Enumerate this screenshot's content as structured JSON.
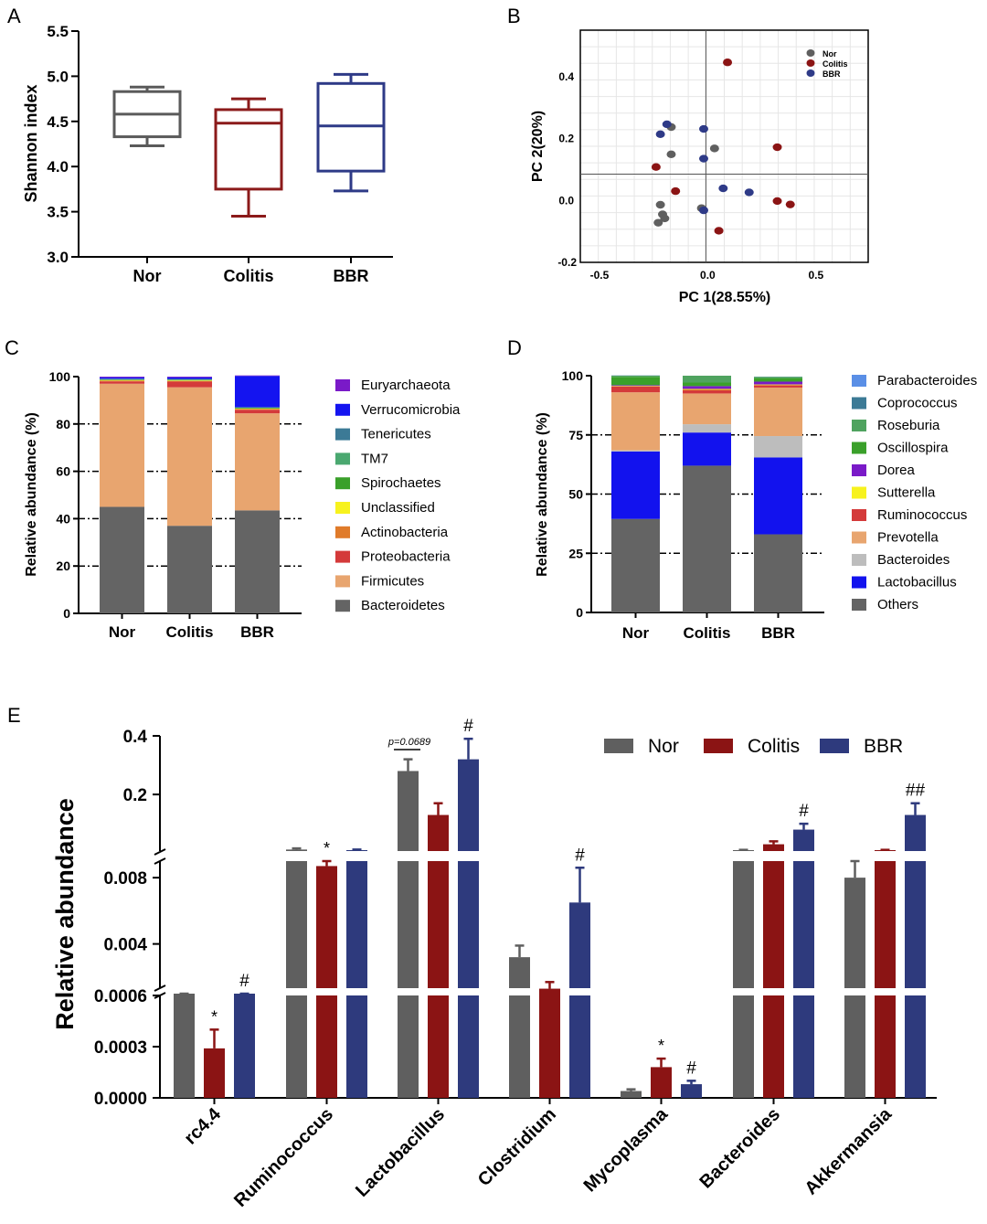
{
  "chart_data": [
    {
      "panel": "A",
      "type": "boxplot",
      "ylabel": "Shannon index",
      "ylim": [
        3.0,
        5.5
      ],
      "yticks": [
        "3.0",
        "3.5",
        "4.0",
        "4.5",
        "5.0",
        "5.5"
      ],
      "categories": [
        "Nor",
        "Colitis",
        "BBR"
      ],
      "colors": [
        "#5a5a5a",
        "#8b1a1a",
        "#2e3a87"
      ],
      "boxes": [
        {
          "min": 4.23,
          "q1": 4.33,
          "median": 4.58,
          "q3": 4.83,
          "max": 4.88
        },
        {
          "min": 3.45,
          "q1": 3.75,
          "median": 4.48,
          "q3": 4.63,
          "max": 4.75
        },
        {
          "min": 3.73,
          "q1": 3.95,
          "median": 4.45,
          "q3": 4.92,
          "max": 5.02
        }
      ]
    },
    {
      "panel": "B",
      "type": "scatter",
      "xlabel": "PC 1(28.55%)",
      "ylabel": "PC 2(20%)",
      "xticks": [
        "-0.5",
        "0.0",
        "0.5"
      ],
      "yticks": [
        "0.4",
        "0.2",
        "0.0",
        "-0.2"
      ],
      "xlim": [
        -0.58,
        0.75
      ],
      "ylim": [
        -0.2,
        0.55
      ],
      "origin_y": 0.085,
      "legend": [
        "Nor",
        "Colitis",
        "BBR"
      ],
      "colors": [
        "#5f5f5f",
        "#8b1414",
        "#2e3a87"
      ],
      "series": [
        {
          "name": "Nor",
          "points": [
            [
              -0.16,
              0.237
            ],
            [
              -0.16,
              0.149
            ],
            [
              0.04,
              0.168
            ],
            [
              -0.02,
              -0.025
            ],
            [
              -0.21,
              -0.014
            ],
            [
              -0.2,
              -0.045
            ],
            [
              -0.19,
              -0.058
            ],
            [
              -0.22,
              -0.072
            ]
          ]
        },
        {
          "name": "Colitis",
          "points": [
            [
              0.1,
              0.446
            ],
            [
              0.33,
              0.172
            ],
            [
              -0.23,
              0.108
            ],
            [
              -0.14,
              0.03
            ],
            [
              0.33,
              -0.002
            ],
            [
              0.39,
              -0.013
            ],
            [
              0.06,
              -0.098
            ]
          ]
        },
        {
          "name": "BBR",
          "points": [
            [
              -0.18,
              0.246
            ],
            [
              -0.21,
              0.214
            ],
            [
              -0.01,
              0.231
            ],
            [
              -0.01,
              0.135
            ],
            [
              0.08,
              0.039
            ],
            [
              0.2,
              0.026
            ],
            [
              -0.01,
              -0.032
            ]
          ]
        }
      ]
    },
    {
      "panel": "C",
      "type": "stacked-bar",
      "ylabel": "Relative abundance (%)",
      "yticks": [
        "0",
        "20",
        "40",
        "60",
        "80",
        "100"
      ],
      "ylim": [
        0,
        100
      ],
      "categories": [
        "Nor",
        "Colitis",
        "BBR"
      ],
      "series": [
        {
          "name": "Bacteroidetes",
          "color": "#646464",
          "values": [
            45,
            37,
            43.5
          ]
        },
        {
          "name": "Firmicutes",
          "color": "#e8a56f",
          "values": [
            52,
            58.5,
            41
          ]
        },
        {
          "name": "Proteobacteria",
          "color": "#d43a3a",
          "values": [
            1,
            2.4,
            1.5
          ]
        },
        {
          "name": "Actinobacteria",
          "color": "#e07b2a",
          "values": [
            0.3,
            0.3,
            0.3
          ]
        },
        {
          "name": "Unclassified",
          "color": "#f7f21e",
          "values": [
            0.2,
            0.2,
            0.2
          ]
        },
        {
          "name": "Spirochaetes",
          "color": "#3aa02a",
          "values": [
            0.2,
            0.2,
            0.2
          ]
        },
        {
          "name": "TM7",
          "color": "#4aa870",
          "values": [
            0.2,
            0.2,
            0.2
          ]
        },
        {
          "name": "Tenericutes",
          "color": "#3c7a96",
          "values": [
            0.2,
            0.2,
            0.2
          ]
        },
        {
          "name": "Verrucomicrobia",
          "color": "#1414f0",
          "values": [
            0.6,
            0.7,
            13.2
          ]
        },
        {
          "name": "Euryarchaeota",
          "color": "#7a1ac8",
          "values": [
            0.3,
            0.3,
            0.2
          ]
        }
      ]
    },
    {
      "panel": "D",
      "type": "stacked-bar",
      "ylabel": "Relative abundance (%)",
      "yticks": [
        "0",
        "25",
        "50",
        "75",
        "100"
      ],
      "ylim": [
        0,
        100
      ],
      "categories": [
        "Nor",
        "Colitis",
        "BBR"
      ],
      "series": [
        {
          "name": "Others",
          "color": "#646464",
          "values": [
            39.5,
            62,
            33
          ]
        },
        {
          "name": "Lactobacillus",
          "color": "#1212ee",
          "values": [
            28.5,
            14,
            32.5
          ]
        },
        {
          "name": "Bacteroides",
          "color": "#bdbdbd",
          "values": [
            0.5,
            3.5,
            9
          ]
        },
        {
          "name": "Prevotella",
          "color": "#e8a56f",
          "values": [
            24.5,
            13,
            20.5
          ]
        },
        {
          "name": "Ruminococcus",
          "color": "#d43a3a",
          "values": [
            2.5,
            1.5,
            1
          ]
        },
        {
          "name": "Sutterella",
          "color": "#f7f21e",
          "values": [
            0.2,
            0.4,
            0.3
          ]
        },
        {
          "name": "Dorea",
          "color": "#7a1ac8",
          "values": [
            0.3,
            1.2,
            1.2
          ]
        },
        {
          "name": "Oscillospira",
          "color": "#3aa02a",
          "values": [
            3.5,
            1.5,
            1.5
          ]
        },
        {
          "name": "Roseburia",
          "color": "#4fa35f",
          "values": [
            0.5,
            2.9,
            0.5
          ]
        },
        {
          "name": "Coprococcus",
          "color": "#3c7a96",
          "values": [
            0.1,
            0,
            0.1
          ]
        },
        {
          "name": "Parabacteroides",
          "color": "#5a8fe6",
          "values": [
            0,
            0,
            0
          ]
        }
      ]
    },
    {
      "panel": "E",
      "type": "bar",
      "ylabel": "Relative abundance",
      "categories": [
        "rc4.4",
        "Ruminococcus",
        "Lactobacillus",
        "Clostridium",
        "Mycoplasma",
        "Bacteroides",
        "Akkermansia"
      ],
      "legend": [
        "Nor",
        "Colitis",
        "BBR"
      ],
      "colors": [
        "#5f5f5f",
        "#8b1414",
        "#2e3a7d"
      ],
      "axis_segments": [
        {
          "range": [
            0,
            0.0006
          ],
          "ticks": [
            "0.0000",
            "0.0003",
            "0.0006"
          ]
        },
        {
          "range": [
            0.001,
            0.009
          ],
          "ticks": [
            "0.004",
            "0.008"
          ]
        },
        {
          "range": [
            0.01,
            0.4
          ],
          "ticks": [
            "0.2",
            "0.4"
          ]
        }
      ],
      "annotation_text": "p=0.0689",
      "series": [
        {
          "name": "Nor",
          "values": [
            0.00067,
            0.012,
            0.28,
            0.0032,
            4e-05,
            0.01,
            0.008
          ],
          "errors": [
            2e-05,
            0.004,
            0.04,
            0.0007,
            1e-05,
            0.001,
            0.001
          ]
        },
        {
          "name": "Colitis",
          "values": [
            0.00029,
            0.0087,
            0.13,
            0.0013,
            0.00018,
            0.03,
            0.01
          ],
          "errors": [
            0.00011,
            0.0003,
            0.04,
            0.0004,
            5e-05,
            0.01,
            0.001
          ]
        },
        {
          "name": "BBR",
          "values": [
            0.00065,
            0.01,
            0.32,
            0.0065,
            8e-05,
            0.08,
            0.13
          ],
          "errors": [
            3e-05,
            0.002,
            0.07,
            0.0021,
            2e-05,
            0.02,
            0.04
          ]
        }
      ],
      "significance": [
        {
          "category": "rc4.4",
          "series": "Colitis",
          "mark": "*"
        },
        {
          "category": "rc4.4",
          "series": "BBR",
          "mark": "#"
        },
        {
          "category": "Ruminococcus",
          "series": "Colitis",
          "mark": "*"
        },
        {
          "category": "Lactobacillus",
          "series": "BBR",
          "mark": "#"
        },
        {
          "category": "Clostridium",
          "series": "BBR",
          "mark": "#"
        },
        {
          "category": "Mycoplasma",
          "series": "Colitis",
          "mark": "*"
        },
        {
          "category": "Mycoplasma",
          "series": "BBR",
          "mark": "#"
        },
        {
          "category": "Bacteroides",
          "series": "BBR",
          "mark": "#"
        },
        {
          "category": "Akkermansia",
          "series": "BBR",
          "mark": "##"
        }
      ]
    }
  ]
}
